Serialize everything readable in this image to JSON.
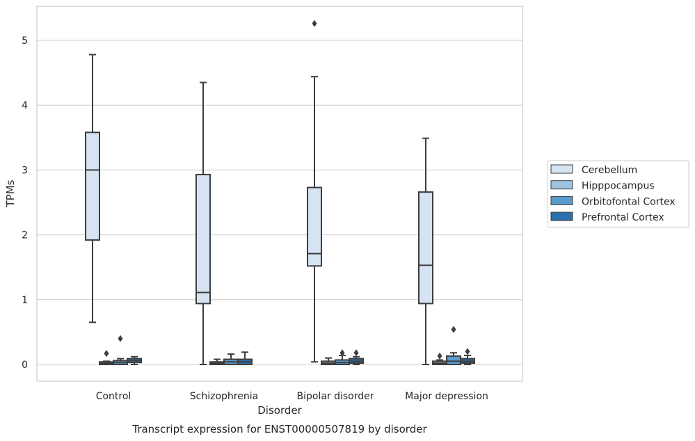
{
  "chart_data": {
    "type": "boxplot",
    "title": "Transcript expression for ENST00000507819 by disorder",
    "xlabel": "Disorder",
    "ylabel": "TPMs",
    "ylim": [
      -0.25,
      5.55
    ],
    "yticks": [
      0,
      1,
      2,
      3,
      4,
      5
    ],
    "grid": true,
    "legend_position": "right",
    "categories": [
      "Control",
      "Schizophrenia",
      "Bipolar disorder",
      "Major depression"
    ],
    "series": [
      {
        "name": "Cerebellum",
        "color": "#d5e3f2",
        "boxes": [
          {
            "whisker_low": 0.65,
            "q1": 1.92,
            "median": 3.0,
            "q3": 3.58,
            "whisker_high": 4.78,
            "outliers": []
          },
          {
            "whisker_low": 0.0,
            "q1": 0.94,
            "median": 1.11,
            "q3": 2.93,
            "whisker_high": 4.35,
            "outliers": []
          },
          {
            "whisker_low": 0.04,
            "q1": 1.52,
            "median": 1.71,
            "q3": 2.73,
            "whisker_high": 4.44,
            "outliers": [
              5.26
            ]
          },
          {
            "whisker_low": 0.0,
            "q1": 0.94,
            "median": 1.53,
            "q3": 2.66,
            "whisker_high": 3.49,
            "outliers": []
          }
        ]
      },
      {
        "name": "Hipppocampus",
        "color": "#9dc3e1",
        "boxes": [
          {
            "whisker_low": 0.0,
            "q1": 0.0,
            "median": 0.02,
            "q3": 0.04,
            "whisker_high": 0.05,
            "outliers": [
              0.17
            ]
          },
          {
            "whisker_low": 0.0,
            "q1": 0.0,
            "median": 0.02,
            "q3": 0.04,
            "whisker_high": 0.08,
            "outliers": []
          },
          {
            "whisker_low": 0.0,
            "q1": 0.0,
            "median": 0.02,
            "q3": 0.05,
            "whisker_high": 0.1,
            "outliers": []
          },
          {
            "whisker_low": 0.0,
            "q1": 0.0,
            "median": 0.02,
            "q3": 0.05,
            "whisker_high": 0.07,
            "outliers": [
              0.13
            ]
          }
        ]
      },
      {
        "name": "Orbitofontal Cortex",
        "color": "#5a9ccd",
        "boxes": [
          {
            "whisker_low": 0.0,
            "q1": 0.0,
            "median": 0.03,
            "q3": 0.06,
            "whisker_high": 0.09,
            "outliers": [
              0.4
            ]
          },
          {
            "whisker_low": 0.0,
            "q1": 0.0,
            "median": 0.04,
            "q3": 0.08,
            "whisker_high": 0.16,
            "outliers": []
          },
          {
            "whisker_low": 0.0,
            "q1": 0.0,
            "median": 0.03,
            "q3": 0.07,
            "whisker_high": 0.14,
            "outliers": [
              0.18
            ]
          },
          {
            "whisker_low": 0.0,
            "q1": 0.0,
            "median": 0.05,
            "q3": 0.13,
            "whisker_high": 0.18,
            "outliers": [
              0.54
            ]
          }
        ]
      },
      {
        "name": "Prefrontal Cortex",
        "color": "#2c6fab",
        "boxes": [
          {
            "whisker_low": 0.0,
            "q1": 0.03,
            "median": 0.06,
            "q3": 0.09,
            "whisker_high": 0.12,
            "outliers": []
          },
          {
            "whisker_low": 0.0,
            "q1": 0.0,
            "median": 0.04,
            "q3": 0.08,
            "whisker_high": 0.19,
            "outliers": []
          },
          {
            "whisker_low": 0.0,
            "q1": 0.02,
            "median": 0.05,
            "q3": 0.09,
            "whisker_high": 0.12,
            "outliers": [
              0.18
            ]
          },
          {
            "whisker_low": 0.0,
            "q1": 0.02,
            "median": 0.05,
            "q3": 0.09,
            "whisker_high": 0.14,
            "outliers": [
              0.2
            ]
          }
        ]
      }
    ]
  }
}
